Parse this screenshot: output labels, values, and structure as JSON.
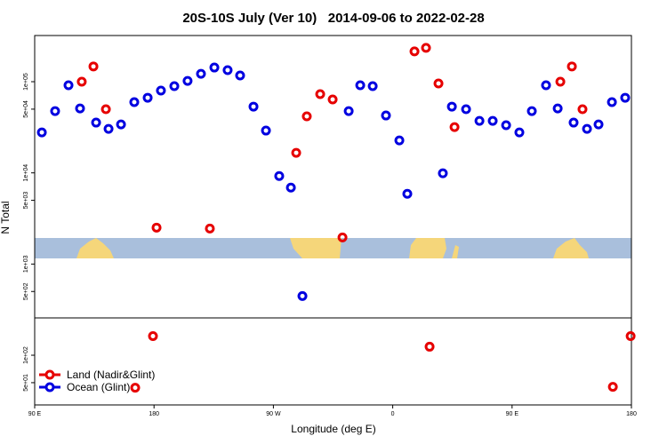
{
  "chart_data": {
    "type": "scatter",
    "title": "20S-10S July (Ver 10)   2014-09-06 to 2022-02-28",
    "x_label": "Longitude (deg E)",
    "y_label": "N Total",
    "log_y": true,
    "xlim": [
      90,
      540
    ],
    "ylim": [
      28.5,
      321000
    ],
    "xticks": [
      {
        "value": 90,
        "label": "90 E"
      },
      180,
      {
        "value": 270,
        "label": "90 W"
      },
      {
        "value": 360,
        "label": "0"
      },
      {
        "value": 450,
        "label": "90 E"
      },
      {
        "value": 540,
        "label": "180"
      }
    ],
    "yticks": [
      {
        "value": 50,
        "label": "5e+01"
      },
      {
        "value": 100,
        "label": "1e+02"
      },
      {
        "value": 500,
        "label": "5e+02"
      },
      {
        "value": 1000,
        "label": "1e+03"
      },
      {
        "value": 5000,
        "label": "5e+03"
      },
      {
        "value": 10000,
        "label": "1e+04"
      },
      {
        "value": 50000,
        "label": "5e+04"
      },
      {
        "value": 100000,
        "label": "1e+05"
      }
    ],
    "legend": "bottom-left",
    "series": [
      {
        "name": "Land (Nadir&Glint)",
        "color": "#e60000",
        "x": [
          125.5,
          134.3,
          143.7,
          181.9,
          222.1,
          287.2,
          295.2,
          305.3,
          314.7,
          322.1,
          376.4,
          385.1,
          394.5,
          406.6,
          486.4,
          495.1,
          503.1,
          179.2,
          165.8,
          387.8,
          526,
          539.4
        ],
        "values": [
          100000,
          147000,
          49900,
          2510,
          2450,
          16600,
          41700,
          73000,
          63800,
          1960,
          215000,
          235000,
          95600,
          31800,
          100000,
          147000,
          49900,
          162,
          44,
          124,
          45,
          162
        ]
      },
      {
        "name": "Ocean (Glint)",
        "color": "#0000e0",
        "x": [
          95.4,
          105.4,
          115.5,
          124.2,
          136.3,
          145.7,
          155.1,
          165.1,
          175.2,
          185.2,
          195.3,
          205.3,
          215.4,
          225.5,
          235.5,
          244.9,
          255,
          264.4,
          274.4,
          283.2,
          291.9,
          326.8,
          335.5,
          344.9,
          354.9,
          365,
          371,
          397.8,
          404.6,
          415.3,
          425.4,
          435.4,
          445.5,
          455.5,
          464.9,
          475.6,
          484.4,
          496.4,
          506.5,
          515.2,
          525.3,
          535.3
        ],
        "values": [
          27800,
          47600,
          91400,
          50900,
          35600,
          30400,
          34000,
          59700,
          66700,
          79900,
          89400,
          102000,
          122000,
          143000,
          134000,
          117000,
          53300,
          29100,
          9240,
          6900,
          446,
          47600,
          91400,
          89400,
          42600,
          22700,
          5900,
          9890,
          53300,
          49900,
          37200,
          37200,
          33300,
          27800,
          47600,
          91400,
          50900,
          35600,
          30400,
          34000,
          59700,
          66700
        ]
      }
    ]
  }
}
